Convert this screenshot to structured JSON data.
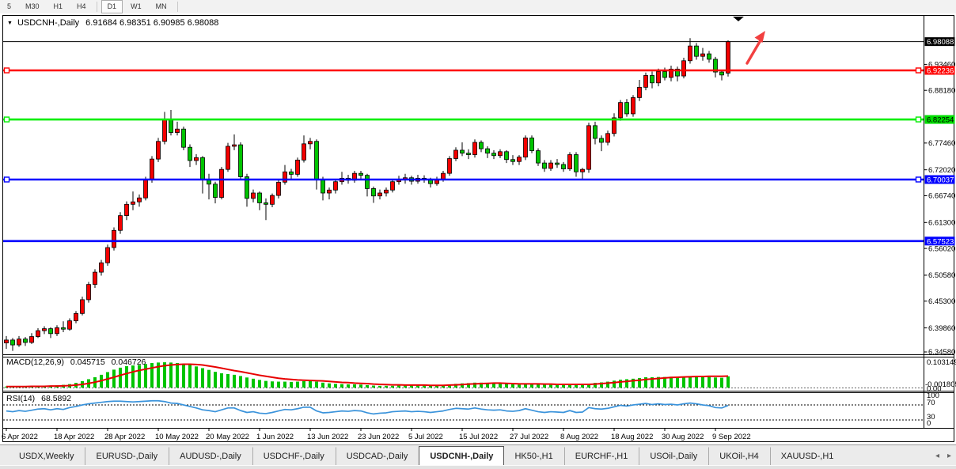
{
  "toolbar": {
    "timeframes": [
      "5",
      "M30",
      "H1",
      "H4",
      "D1",
      "W1",
      "MN"
    ],
    "active_timeframe": "D1"
  },
  "chart": {
    "symbol_title": "USDCNH-,Daily",
    "ohlc_label": "6.91684 6.98351 6.90985 6.98088",
    "collapse_icon": "▼",
    "current_price": 6.98088,
    "colors": {
      "bull_candle": "#F40000",
      "bear_candle": "#00C400",
      "wick": "#000000",
      "current_price_line": "#000000",
      "macd_bar": "#00C400",
      "macd_signal": "#E80000",
      "rsi_line": "#3A93DB",
      "arrow_annotation": "#F24040"
    },
    "hlines": [
      {
        "price": 6.92236,
        "color": "#FF0000",
        "handles": true
      },
      {
        "price": 6.82254,
        "color": "#00EE00",
        "handles": true
      },
      {
        "price": 6.70037,
        "color": "#0000FF",
        "handles": true
      },
      {
        "price": 6.57523,
        "color": "#0000FF",
        "handles": false
      }
    ],
    "price_axis": {
      "ticks": [
        {
          "label": "6.93460",
          "price": 6.9346
        },
        {
          "label": "6.88180",
          "price": 6.8818
        },
        {
          "label": "6.77460",
          "price": 6.7746
        },
        {
          "label": "6.72020",
          "price": 6.7202
        },
        {
          "label": "6.66740",
          "price": 6.6674
        },
        {
          "label": "6.61300",
          "price": 6.613
        },
        {
          "label": "6.56020",
          "price": 6.5602
        },
        {
          "label": "6.50580",
          "price": 6.5058
        },
        {
          "label": "6.45300",
          "price": 6.453
        },
        {
          "label": "6.39860",
          "price": 6.3986
        },
        {
          "label": "6.34580",
          "price": 6.3458
        }
      ],
      "badges": [
        {
          "label": "6.98088",
          "price": 6.98088,
          "bg": "#000000",
          "fg": "#FFFFFF"
        },
        {
          "label": "6.92236",
          "price": 6.92236,
          "bg": "#FF0000",
          "fg": "#FFFFFF"
        },
        {
          "label": "6.82254",
          "price": 6.82254,
          "bg": "#00DD00",
          "fg": "#000000"
        },
        {
          "label": "6.70037",
          "price": 6.70037,
          "bg": "#0000FF",
          "fg": "#FFFFFF"
        },
        {
          "label": "6.57523",
          "price": 6.57523,
          "bg": "#0000FF",
          "fg": "#FFFFFF"
        }
      ]
    },
    "date_axis": {
      "labels": [
        {
          "text": "6 Apr 2022",
          "index": 0
        },
        {
          "text": "18 Apr 2022",
          "index": 8
        },
        {
          "text": "28 Apr 2022",
          "index": 16
        },
        {
          "text": "10 May 2022",
          "index": 24
        },
        {
          "text": "20 May 2022",
          "index": 32
        },
        {
          "text": "1 Jun 2022",
          "index": 40
        },
        {
          "text": "13 Jun 2022",
          "index": 48
        },
        {
          "text": "23 Jun 2022",
          "index": 56
        },
        {
          "text": "5 Jul 2022",
          "index": 64
        },
        {
          "text": "15 Jul 2022",
          "index": 72
        },
        {
          "text": "27 Jul 2022",
          "index": 80
        },
        {
          "text": "8 Aug 2022",
          "index": 88
        },
        {
          "text": "18 Aug 2022",
          "index": 96
        },
        {
          "text": "30 Aug 2022",
          "index": 104
        },
        {
          "text": "9 Sep 2022",
          "index": 112
        }
      ]
    },
    "annotations": {
      "arrow": "red-up-right-arrow",
      "marker": "black-down-triangle"
    }
  },
  "chart_data": {
    "type": "candlestick",
    "symbol": "USDCNH",
    "timeframe": "Daily",
    "last_ohlc": {
      "open": 6.91684,
      "high": 6.98351,
      "low": 6.90985,
      "close": 6.98088
    },
    "candles": [
      [
        6.368,
        6.382,
        6.356,
        6.374
      ],
      [
        6.374,
        6.378,
        6.352,
        6.364
      ],
      [
        6.364,
        6.382,
        6.36,
        6.376
      ],
      [
        6.376,
        6.38,
        6.362,
        6.369
      ],
      [
        6.369,
        6.388,
        6.366,
        6.381
      ],
      [
        6.381,
        6.398,
        6.378,
        6.393
      ],
      [
        6.393,
        6.402,
        6.386,
        6.397
      ],
      [
        6.397,
        6.4,
        6.378,
        6.387
      ],
      [
        6.387,
        6.404,
        6.382,
        6.399
      ],
      [
        6.399,
        6.412,
        6.39,
        6.396
      ],
      [
        6.396,
        6.418,
        6.393,
        6.413
      ],
      [
        6.413,
        6.433,
        6.408,
        6.428
      ],
      [
        6.428,
        6.462,
        6.424,
        6.456
      ],
      [
        6.456,
        6.492,
        6.45,
        6.487
      ],
      [
        6.487,
        6.518,
        6.48,
        6.512
      ],
      [
        6.512,
        6.537,
        6.505,
        6.531
      ],
      [
        6.531,
        6.568,
        6.525,
        6.562
      ],
      [
        6.562,
        6.603,
        6.556,
        6.597
      ],
      [
        6.597,
        6.634,
        6.59,
        6.627
      ],
      [
        6.627,
        6.656,
        6.618,
        6.65
      ],
      [
        6.65,
        6.676,
        6.638,
        6.655
      ],
      [
        6.655,
        6.67,
        6.645,
        6.663
      ],
      [
        6.663,
        6.706,
        6.658,
        6.7
      ],
      [
        6.7,
        6.748,
        6.694,
        6.742
      ],
      [
        6.742,
        6.785,
        6.736,
        6.778
      ],
      [
        6.778,
        6.838,
        6.772,
        6.822
      ],
      [
        6.822,
        6.842,
        6.79,
        6.796
      ],
      [
        6.796,
        6.818,
        6.79,
        6.803
      ],
      [
        6.803,
        6.808,
        6.76,
        6.766
      ],
      [
        6.766,
        6.772,
        6.726,
        6.739
      ],
      [
        6.739,
        6.752,
        6.73,
        6.745
      ],
      [
        6.745,
        6.748,
        6.672,
        6.701
      ],
      [
        6.701,
        6.712,
        6.66,
        6.691
      ],
      [
        6.691,
        6.696,
        6.652,
        6.664
      ],
      [
        6.664,
        6.726,
        6.66,
        6.721
      ],
      [
        6.721,
        6.775,
        6.716,
        6.768
      ],
      [
        6.768,
        6.792,
        6.76,
        6.771
      ],
      [
        6.771,
        6.776,
        6.7,
        6.706
      ],
      [
        6.706,
        6.712,
        6.645,
        6.662
      ],
      [
        6.662,
        6.68,
        6.654,
        6.673
      ],
      [
        6.673,
        6.676,
        6.638,
        6.653
      ],
      [
        6.653,
        6.662,
        6.618,
        6.65
      ],
      [
        6.65,
        6.672,
        6.644,
        6.668
      ],
      [
        6.668,
        6.7,
        6.662,
        6.695
      ],
      [
        6.695,
        6.73,
        6.69,
        6.716
      ],
      [
        6.716,
        6.722,
        6.7,
        6.711
      ],
      [
        6.711,
        6.745,
        6.706,
        6.74
      ],
      [
        6.74,
        6.79,
        6.735,
        6.773
      ],
      [
        6.773,
        6.785,
        6.762,
        6.778
      ],
      [
        6.778,
        6.782,
        6.68,
        6.701
      ],
      [
        6.701,
        6.706,
        6.658,
        6.673
      ],
      [
        6.673,
        6.684,
        6.66,
        6.679
      ],
      [
        6.679,
        6.7,
        6.672,
        6.696
      ],
      [
        6.696,
        6.716,
        6.69,
        6.703
      ],
      [
        6.703,
        6.71,
        6.692,
        6.699
      ],
      [
        6.699,
        6.718,
        6.694,
        6.713
      ],
      [
        6.713,
        6.718,
        6.7,
        6.709
      ],
      [
        6.709,
        6.712,
        6.666,
        6.682
      ],
      [
        6.682,
        6.686,
        6.653,
        6.667
      ],
      [
        6.667,
        6.68,
        6.66,
        6.673
      ],
      [
        6.673,
        6.684,
        6.666,
        6.679
      ],
      [
        6.679,
        6.7,
        6.674,
        6.696
      ],
      [
        6.696,
        6.708,
        6.69,
        6.701
      ],
      [
        6.701,
        6.712,
        6.692,
        6.704
      ],
      [
        6.704,
        6.708,
        6.69,
        6.697
      ],
      [
        6.697,
        6.71,
        6.692,
        6.703
      ],
      [
        6.703,
        6.709,
        6.694,
        6.7
      ],
      [
        6.7,
        6.704,
        6.684,
        6.692
      ],
      [
        6.692,
        6.706,
        6.688,
        6.701
      ],
      [
        6.701,
        6.718,
        6.696,
        6.713
      ],
      [
        6.713,
        6.748,
        6.708,
        6.743
      ],
      [
        6.743,
        6.766,
        6.738,
        6.76
      ],
      [
        6.76,
        6.776,
        6.748,
        6.754
      ],
      [
        6.754,
        6.762,
        6.742,
        6.751
      ],
      [
        6.751,
        6.782,
        6.745,
        6.776
      ],
      [
        6.776,
        6.78,
        6.756,
        6.763
      ],
      [
        6.763,
        6.768,
        6.744,
        6.754
      ],
      [
        6.754,
        6.76,
        6.742,
        6.749
      ],
      [
        6.749,
        6.762,
        6.744,
        6.757
      ],
      [
        6.757,
        6.76,
        6.734,
        6.741
      ],
      [
        6.741,
        6.75,
        6.73,
        6.737
      ],
      [
        6.737,
        6.75,
        6.73,
        6.746
      ],
      [
        6.746,
        6.79,
        6.74,
        6.785
      ],
      [
        6.785,
        6.79,
        6.754,
        6.759
      ],
      [
        6.759,
        6.764,
        6.728,
        6.734
      ],
      [
        6.734,
        6.74,
        6.716,
        6.723
      ],
      [
        6.723,
        6.74,
        6.718,
        6.734
      ],
      [
        6.734,
        6.742,
        6.724,
        6.731
      ],
      [
        6.731,
        6.736,
        6.716,
        6.722
      ],
      [
        6.722,
        6.756,
        6.718,
        6.751
      ],
      [
        6.751,
        6.756,
        6.706,
        6.716
      ],
      [
        6.716,
        6.724,
        6.7,
        6.721
      ],
      [
        6.721,
        6.816,
        6.714,
        6.81
      ],
      [
        6.81,
        6.818,
        6.772,
        6.784
      ],
      [
        6.784,
        6.79,
        6.758,
        6.776
      ],
      [
        6.776,
        6.8,
        6.77,
        6.794
      ],
      [
        6.794,
        6.835,
        6.788,
        6.826
      ],
      [
        6.826,
        6.862,
        6.82,
        6.857
      ],
      [
        6.857,
        6.864,
        6.828,
        6.834
      ],
      [
        6.834,
        6.872,
        6.828,
        6.867
      ],
      [
        6.867,
        6.903,
        6.86,
        6.888
      ],
      [
        6.888,
        6.918,
        6.882,
        6.912
      ],
      [
        6.912,
        6.92,
        6.886,
        6.897
      ],
      [
        6.897,
        6.926,
        6.89,
        6.92
      ],
      [
        6.92,
        6.928,
        6.902,
        6.908
      ],
      [
        6.908,
        6.932,
        6.9,
        6.925
      ],
      [
        6.925,
        6.93,
        6.9,
        6.911
      ],
      [
        6.911,
        6.948,
        6.906,
        6.942
      ],
      [
        6.942,
        6.988,
        6.936,
        6.972
      ],
      [
        6.972,
        6.978,
        6.944,
        6.951
      ],
      [
        6.951,
        6.968,
        6.942,
        6.956
      ],
      [
        6.956,
        6.962,
        6.938,
        6.945
      ],
      [
        6.945,
        6.95,
        6.908,
        6.919
      ],
      [
        6.919,
        6.924,
        6.902,
        6.913
      ],
      [
        6.91684,
        6.98351,
        6.90985,
        6.98088
      ]
    ],
    "macd": {
      "label": "MACD(12,26,9)",
      "main_value": "0.045715",
      "signal_value": "0.046726",
      "axis_max": "0.103149",
      "axis_min": "-0.001805",
      "zero_label": "0.00",
      "histogram": [
        0.004,
        0.004,
        0.005,
        0.005,
        0.006,
        0.007,
        0.008,
        0.008,
        0.009,
        0.011,
        0.014,
        0.019,
        0.026,
        0.034,
        0.042,
        0.052,
        0.063,
        0.073,
        0.081,
        0.087,
        0.09,
        0.092,
        0.096,
        0.1,
        0.102,
        0.103,
        0.102,
        0.1,
        0.097,
        0.092,
        0.086,
        0.079,
        0.072,
        0.064,
        0.058,
        0.055,
        0.052,
        0.047,
        0.041,
        0.036,
        0.031,
        0.027,
        0.025,
        0.024,
        0.024,
        0.023,
        0.024,
        0.026,
        0.027,
        0.024,
        0.02,
        0.017,
        0.015,
        0.014,
        0.013,
        0.013,
        0.012,
        0.01,
        0.008,
        0.007,
        0.007,
        0.007,
        0.008,
        0.009,
        0.009,
        0.009,
        0.009,
        0.008,
        0.008,
        0.009,
        0.012,
        0.015,
        0.017,
        0.018,
        0.02,
        0.02,
        0.019,
        0.018,
        0.017,
        0.015,
        0.013,
        0.012,
        0.014,
        0.015,
        0.014,
        0.012,
        0.011,
        0.01,
        0.01,
        0.011,
        0.011,
        0.011,
        0.016,
        0.019,
        0.021,
        0.024,
        0.028,
        0.032,
        0.034,
        0.036,
        0.039,
        0.042,
        0.042,
        0.043,
        0.043,
        0.044,
        0.043,
        0.044,
        0.046,
        0.045,
        0.044,
        0.043,
        0.041,
        0.04,
        0.0457
      ],
      "signal": [
        0.004,
        0.004,
        0.004,
        0.004,
        0.005,
        0.005,
        0.005,
        0.006,
        0.006,
        0.007,
        0.008,
        0.01,
        0.013,
        0.017,
        0.022,
        0.028,
        0.035,
        0.042,
        0.05,
        0.057,
        0.064,
        0.07,
        0.075,
        0.08,
        0.085,
        0.089,
        0.092,
        0.094,
        0.095,
        0.095,
        0.094,
        0.092,
        0.088,
        0.084,
        0.079,
        0.074,
        0.069,
        0.065,
        0.06,
        0.055,
        0.05,
        0.046,
        0.042,
        0.038,
        0.035,
        0.033,
        0.031,
        0.03,
        0.029,
        0.028,
        0.027,
        0.025,
        0.023,
        0.021,
        0.02,
        0.018,
        0.017,
        0.016,
        0.014,
        0.013,
        0.012,
        0.011,
        0.011,
        0.01,
        0.01,
        0.01,
        0.01,
        0.009,
        0.009,
        0.009,
        0.01,
        0.011,
        0.012,
        0.014,
        0.015,
        0.016,
        0.017,
        0.018,
        0.018,
        0.017,
        0.016,
        0.015,
        0.015,
        0.015,
        0.015,
        0.014,
        0.014,
        0.013,
        0.013,
        0.013,
        0.013,
        0.013,
        0.013,
        0.014,
        0.016,
        0.018,
        0.02,
        0.023,
        0.025,
        0.028,
        0.03,
        0.033,
        0.035,
        0.037,
        0.039,
        0.041,
        0.042,
        0.043,
        0.044,
        0.045,
        0.045,
        0.046,
        0.046,
        0.046,
        0.0467
      ]
    },
    "rsi": {
      "label": "RSI(14)",
      "value": "68.5892",
      "levels": [
        "100",
        "70",
        "30",
        "0"
      ],
      "series": [
        54,
        52,
        55,
        53,
        56,
        59,
        60,
        57,
        60,
        58,
        63,
        66,
        70,
        73,
        75,
        77,
        79,
        80,
        80,
        79,
        78,
        79,
        80,
        81,
        81,
        79,
        75,
        74,
        70,
        66,
        62,
        57,
        55,
        52,
        57,
        62,
        62,
        55,
        50,
        52,
        48,
        47,
        50,
        54,
        58,
        57,
        60,
        64,
        64,
        54,
        49,
        50,
        52,
        54,
        53,
        55,
        54,
        49,
        46,
        48,
        49,
        52,
        53,
        54,
        52,
        53,
        52,
        50,
        52,
        54,
        58,
        61,
        60,
        59,
        62,
        59,
        57,
        56,
        57,
        54,
        53,
        55,
        60,
        56,
        52,
        50,
        52,
        51,
        50,
        55,
        50,
        51,
        63,
        60,
        59,
        61,
        65,
        69,
        67,
        70,
        72,
        74,
        71,
        73,
        71,
        72,
        70,
        73,
        75,
        73,
        70,
        68,
        63,
        62,
        68.6
      ]
    }
  },
  "tabs": {
    "items": [
      "USDX,Weekly",
      "EURUSD-,Daily",
      "AUDUSD-,Daily",
      "USDCHF-,Daily",
      "USDCAD-,Daily",
      "USDCNH-,Daily",
      "HK50-,H1",
      "EURCHF-,H1",
      "USOil-,Daily",
      "UKOil-,H4",
      "XAUUSD-,H1"
    ],
    "active": "USDCNH-,Daily",
    "scroll_left": "◂",
    "scroll_right": "▸"
  }
}
